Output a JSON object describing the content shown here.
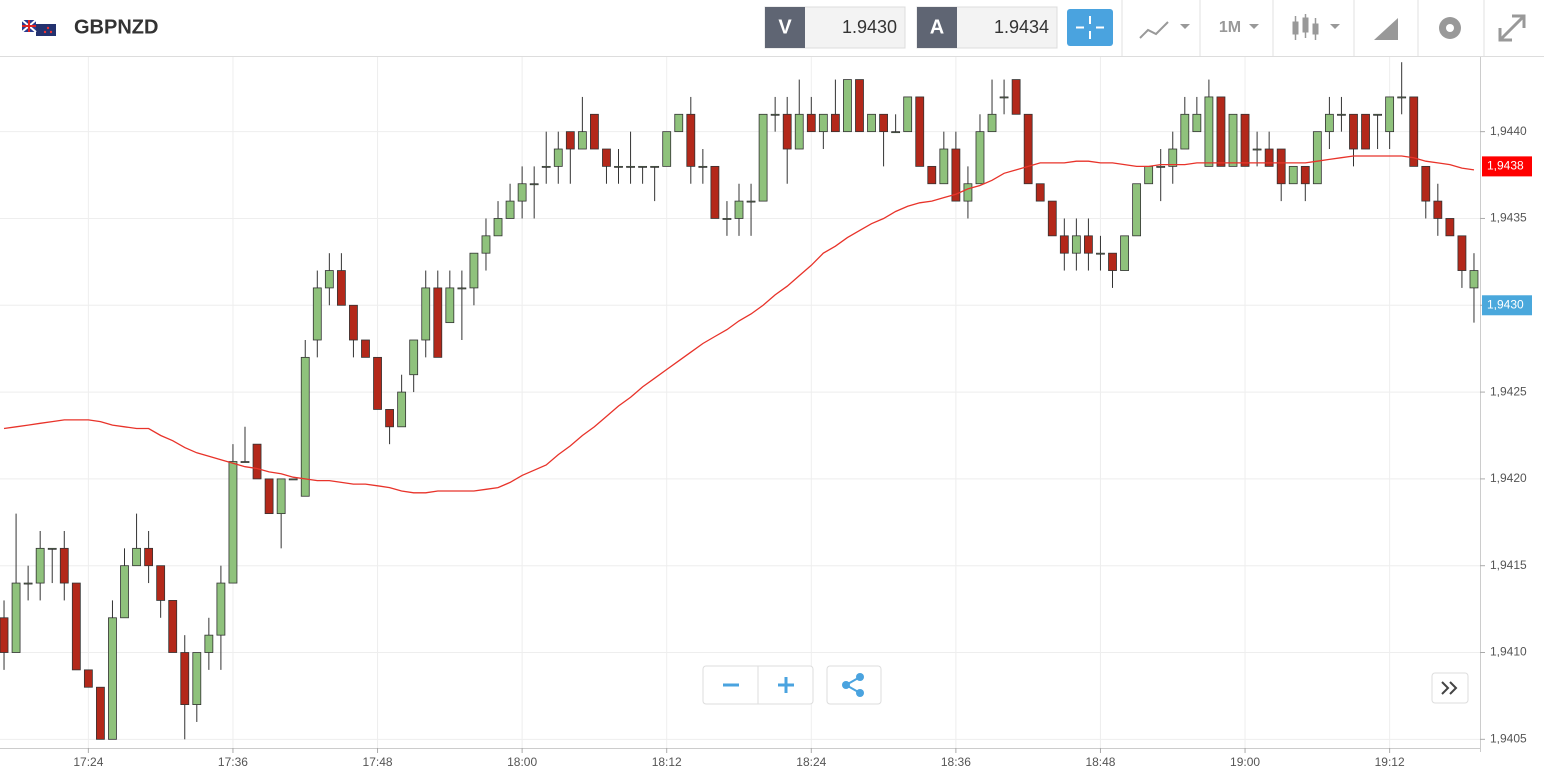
{
  "header": {
    "symbol": "GBPNZD",
    "sell_label": "V",
    "sell": "1.9430",
    "buy_label": "A",
    "buy": "1.9434",
    "timeframe": "1M"
  },
  "chart_data": {
    "type": "candlestick",
    "categories": [
      null,
      null,
      null,
      null,
      null,
      null,
      null,
      "17:24",
      null,
      null,
      null,
      null,
      null,
      null,
      null,
      null,
      null,
      null,
      null,
      "17:36",
      null,
      null,
      null,
      null,
      null,
      null,
      null,
      null,
      null,
      null,
      null,
      "17:48",
      null,
      null,
      null,
      null,
      null,
      null,
      null,
      null,
      null,
      null,
      null,
      "18:00",
      null,
      null,
      null,
      null,
      null,
      null,
      null,
      null,
      null,
      null,
      null,
      "18:12",
      null,
      null,
      null,
      null,
      null,
      null,
      null,
      null,
      null,
      null,
      null,
      "18:24",
      null,
      null,
      null,
      null,
      null,
      null,
      null,
      null,
      null,
      null,
      null,
      "18:36",
      null,
      null,
      null,
      null,
      null,
      null,
      null,
      null,
      null,
      null,
      null,
      "18:48",
      null,
      null,
      null,
      null,
      null,
      null,
      null,
      null,
      null,
      null,
      null,
      "19:00",
      null,
      null,
      null,
      null,
      null,
      null,
      null,
      null,
      null,
      null,
      null,
      "19:12",
      null,
      null,
      null,
      null,
      null,
      null,
      null
    ],
    "open": [
      1.9412,
      1.941,
      1.9414,
      1.9414,
      1.9416,
      1.9416,
      1.9414,
      1.9409,
      1.9408,
      1.9405,
      1.9412,
      1.9415,
      1.9416,
      1.9415,
      1.9413,
      1.941,
      1.9407,
      1.941,
      1.9411,
      1.9414,
      1.9421,
      1.9422,
      1.942,
      1.9418,
      1.942,
      1.9419,
      1.9428,
      1.9431,
      1.9432,
      1.943,
      1.9428,
      1.9427,
      1.9424,
      1.9423,
      1.9426,
      1.9428,
      1.9431,
      1.9429,
      1.9431,
      1.9431,
      1.9433,
      1.9434,
      1.9435,
      1.9436,
      1.9437,
      1.9438,
      1.9438,
      1.944,
      1.9439,
      1.9441,
      1.9439,
      1.9438,
      1.9438,
      1.9438,
      1.9438,
      1.9438,
      1.944,
      1.9441,
      1.9438,
      1.9438,
      1.9435,
      1.9435,
      1.9436,
      1.9436,
      1.9441,
      1.9441,
      1.9439,
      1.9441,
      1.944,
      1.9441,
      1.944,
      1.9443,
      1.944,
      1.9441,
      1.944,
      1.944,
      1.9442,
      1.9438,
      1.9437,
      1.9439,
      1.9436,
      1.9437,
      1.944,
      1.9442,
      1.9443,
      1.9441,
      1.9437,
      1.9436,
      1.9434,
      1.9433,
      1.9434,
      1.9433,
      1.9433,
      1.9432,
      1.9434,
      1.9437,
      1.9438,
      1.9438,
      1.9439,
      1.944,
      1.9438,
      1.9442,
      1.9438,
      1.9441,
      1.9439,
      1.9439,
      1.9439,
      1.9437,
      1.9438,
      1.9437,
      1.944,
      1.9441,
      1.9441,
      1.9441,
      1.9441,
      1.944,
      1.9442,
      1.9442,
      1.9438,
      1.9436,
      1.9435,
      1.9434,
      1.9431
    ],
    "high": [
      1.9413,
      1.9418,
      1.9415,
      1.9417,
      1.9416,
      1.9417,
      1.9414,
      1.9409,
      1.9408,
      1.9413,
      1.9416,
      1.9418,
      1.9417,
      1.9415,
      1.9413,
      1.9411,
      1.941,
      1.9412,
      1.9415,
      1.9422,
      1.9423,
      1.9422,
      1.942,
      1.942,
      1.942,
      1.9428,
      1.9432,
      1.9433,
      1.9433,
      1.943,
      1.9428,
      1.9427,
      1.9424,
      1.9426,
      1.9428,
      1.9432,
      1.9432,
      1.9432,
      1.9432,
      1.9433,
      1.9435,
      1.9436,
      1.9437,
      1.9438,
      1.9438,
      1.944,
      1.944,
      1.944,
      1.9442,
      1.9441,
      1.9439,
      1.9439,
      1.944,
      1.9438,
      1.9438,
      1.944,
      1.9441,
      1.9442,
      1.9439,
      1.9438,
      1.9436,
      1.9437,
      1.9437,
      1.9441,
      1.9442,
      1.9442,
      1.9443,
      1.9442,
      1.9441,
      1.9443,
      1.9443,
      1.9443,
      1.9441,
      1.9441,
      1.9441,
      1.9442,
      1.9442,
      1.9438,
      1.944,
      1.944,
      1.9438,
      1.9441,
      1.9443,
      1.9443,
      1.9443,
      1.9441,
      1.9437,
      1.9436,
      1.9435,
      1.9435,
      1.9435,
      1.9434,
      1.9433,
      1.9434,
      1.9437,
      1.9438,
      1.9439,
      1.944,
      1.9442,
      1.9442,
      1.9443,
      1.9442,
      1.9441,
      1.9441,
      1.944,
      1.944,
      1.9439,
      1.9438,
      1.9438,
      1.944,
      1.9442,
      1.9442,
      1.9441,
      1.9441,
      1.9441,
      1.9442,
      1.9444,
      1.9442,
      1.9438,
      1.9437,
      1.9435,
      1.9434,
      1.9433
    ],
    "low": [
      1.9409,
      1.941,
      1.9413,
      1.9413,
      1.9414,
      1.9413,
      1.9409,
      1.9408,
      1.9405,
      1.9405,
      1.9412,
      1.9415,
      1.9414,
      1.9412,
      1.941,
      1.9405,
      1.9406,
      1.9409,
      1.9409,
      1.9414,
      1.9421,
      1.942,
      1.9418,
      1.9416,
      1.942,
      1.9419,
      1.9427,
      1.943,
      1.943,
      1.9427,
      1.9427,
      1.9424,
      1.9422,
      1.9423,
      1.9425,
      1.9427,
      1.9427,
      1.9429,
      1.9428,
      1.943,
      1.9432,
      1.9434,
      1.9435,
      1.9435,
      1.9435,
      1.9437,
      1.9437,
      1.9437,
      1.9439,
      1.9439,
      1.9437,
      1.9437,
      1.9437,
      1.9437,
      1.9436,
      1.9438,
      1.944,
      1.9437,
      1.9437,
      1.9435,
      1.9434,
      1.9434,
      1.9434,
      1.9436,
      1.944,
      1.9437,
      1.9439,
      1.944,
      1.9439,
      1.944,
      1.944,
      1.944,
      1.944,
      1.9438,
      1.944,
      1.944,
      1.9438,
      1.9437,
      1.9437,
      1.9436,
      1.9435,
      1.9437,
      1.944,
      1.9441,
      1.9441,
      1.9437,
      1.9436,
      1.9434,
      1.9432,
      1.9432,
      1.9432,
      1.9432,
      1.9431,
      1.9432,
      1.9434,
      1.9437,
      1.9436,
      1.9437,
      1.9439,
      1.944,
      1.9438,
      1.9438,
      1.9438,
      1.9438,
      1.9438,
      1.9438,
      1.9436,
      1.9437,
      1.9436,
      1.9437,
      1.9439,
      1.944,
      1.9438,
      1.9439,
      1.9439,
      1.9439,
      1.9441,
      1.9438,
      1.9435,
      1.9434,
      1.9434,
      1.9431,
      1.9429
    ],
    "close": [
      1.941,
      1.9414,
      1.9414,
      1.9416,
      1.9416,
      1.9414,
      1.9409,
      1.9408,
      1.9405,
      1.9412,
      1.9415,
      1.9416,
      1.9415,
      1.9413,
      1.941,
      1.9407,
      1.941,
      1.9411,
      1.9414,
      1.9421,
      1.9421,
      1.942,
      1.9418,
      1.942,
      1.942,
      1.9427,
      1.9431,
      1.9432,
      1.943,
      1.9428,
      1.9427,
      1.9424,
      1.9423,
      1.9425,
      1.9428,
      1.9431,
      1.9427,
      1.9431,
      1.9431,
      1.9433,
      1.9434,
      1.9435,
      1.9436,
      1.9437,
      1.9437,
      1.9438,
      1.9439,
      1.9439,
      1.944,
      1.9439,
      1.9438,
      1.9438,
      1.9438,
      1.9438,
      1.9438,
      1.944,
      1.9441,
      1.9438,
      1.9438,
      1.9435,
      1.9435,
      1.9436,
      1.9436,
      1.9441,
      1.9441,
      1.9439,
      1.9441,
      1.944,
      1.9441,
      1.944,
      1.9443,
      1.944,
      1.9441,
      1.944,
      1.944,
      1.9442,
      1.9438,
      1.9437,
      1.9439,
      1.9436,
      1.9437,
      1.944,
      1.9441,
      1.9442,
      1.9441,
      1.9437,
      1.9436,
      1.9434,
      1.9433,
      1.9434,
      1.9433,
      1.9433,
      1.9432,
      1.9434,
      1.9437,
      1.9438,
      1.9438,
      1.9439,
      1.9441,
      1.9441,
      1.9442,
      1.9438,
      1.9441,
      1.9438,
      1.9439,
      1.9438,
      1.9437,
      1.9438,
      1.9437,
      1.944,
      1.9441,
      1.9441,
      1.9439,
      1.9439,
      1.9441,
      1.9442,
      1.9442,
      1.9438,
      1.9436,
      1.9435,
      1.9434,
      1.9432,
      1.9432
    ],
    "ma": {
      "color": "#e8332a",
      "values": [
        1.94229,
        1.9423,
        1.94231,
        1.94232,
        1.94233,
        1.94234,
        1.94234,
        1.94234,
        1.94233,
        1.94231,
        1.9423,
        1.94229,
        1.94229,
        1.94225,
        1.94222,
        1.94218,
        1.94215,
        1.94213,
        1.94211,
        1.94209,
        1.94207,
        1.94206,
        1.94204,
        1.94203,
        1.94201,
        1.942,
        1.94199,
        1.94199,
        1.94198,
        1.94197,
        1.94197,
        1.94196,
        1.94195,
        1.94193,
        1.94192,
        1.94192,
        1.94193,
        1.94193,
        1.94193,
        1.94193,
        1.94194,
        1.94195,
        1.94198,
        1.94202,
        1.94205,
        1.94208,
        1.94214,
        1.94219,
        1.94225,
        1.9423,
        1.94236,
        1.94242,
        1.94247,
        1.94253,
        1.94258,
        1.94263,
        1.94268,
        1.94273,
        1.94278,
        1.94282,
        1.94286,
        1.94291,
        1.94295,
        1.943,
        1.94306,
        1.94311,
        1.94317,
        1.94323,
        1.9433,
        1.94334,
        1.94339,
        1.94343,
        1.94347,
        1.9435,
        1.94354,
        1.94357,
        1.94359,
        1.9436,
        1.94362,
        1.94364,
        1.94367,
        1.94369,
        1.94372,
        1.94376,
        1.94378,
        1.9438,
        1.94382,
        1.94382,
        1.94382,
        1.94383,
        1.94383,
        1.94382,
        1.94382,
        1.94381,
        1.9438,
        1.9438,
        1.94381,
        1.94381,
        1.94381,
        1.94382,
        1.94382,
        1.94382,
        1.94382,
        1.94382,
        1.94382,
        1.94382,
        1.94382,
        1.94382,
        1.94382,
        1.94383,
        1.94384,
        1.94385,
        1.94386,
        1.94386,
        1.94386,
        1.94386,
        1.94386,
        1.94385,
        1.94383,
        1.94382,
        1.94381,
        1.94379,
        1.94378
      ]
    },
    "up_color": "#8fc27c",
    "down_color": "#b3281a",
    "ylim": [
      1.94045,
      1.94443
    ],
    "yticks": [
      {
        "value": 1.9405,
        "label": "1,9405"
      },
      {
        "value": 1.941,
        "label": "1,9410"
      },
      {
        "value": 1.9415,
        "label": "1,9415"
      },
      {
        "value": 1.942,
        "label": "1,9420"
      },
      {
        "value": 1.9425,
        "label": "1,9425"
      },
      {
        "value": 1.943,
        "label": "1,9430"
      },
      {
        "value": 1.9435,
        "label": "1,9435"
      },
      {
        "value": 1.944,
        "label": "1,9440"
      }
    ],
    "price_labels": [
      {
        "value": 1.9438,
        "label": "1,9438",
        "color": "#ff0000"
      },
      {
        "value": 1.943,
        "label": "1,9430",
        "color": "#4aa8dc"
      }
    ],
    "grid": true
  }
}
